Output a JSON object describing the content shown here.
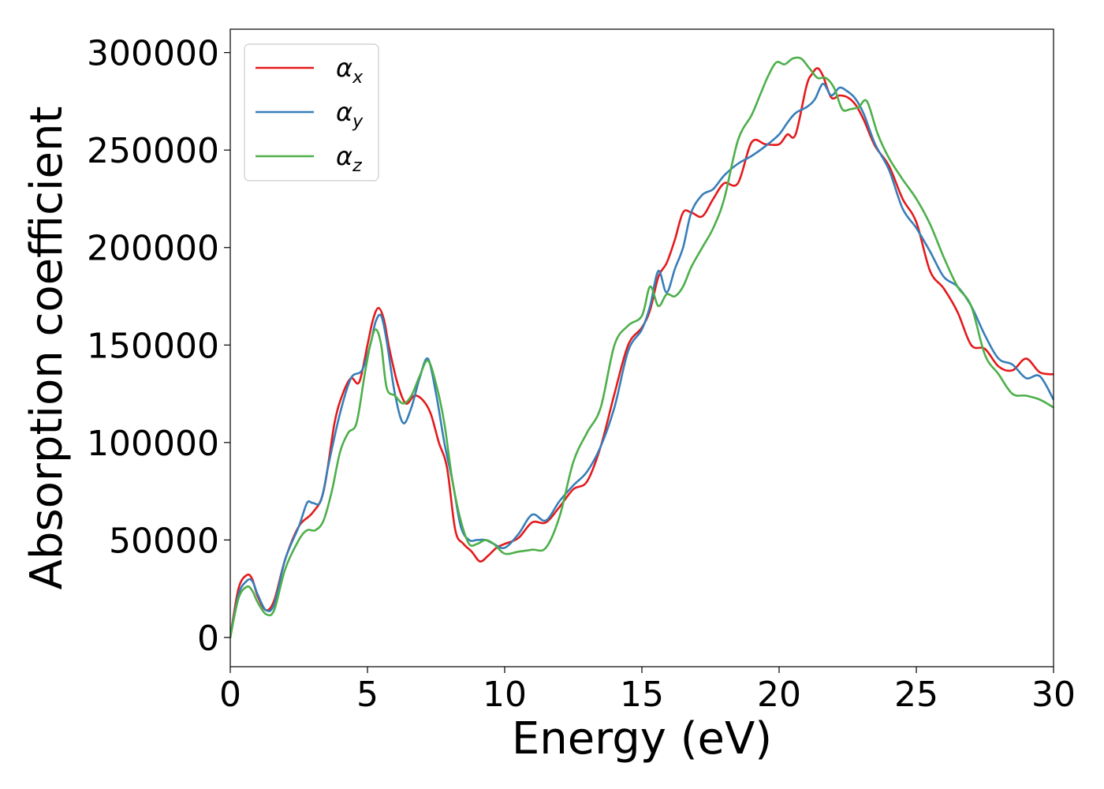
{
  "chart_data": {
    "type": "line",
    "title": "",
    "xlabel": "Energy (eV)",
    "ylabel": "Absorption coefficient",
    "xlim": [
      0,
      30
    ],
    "ylim": [
      -15000,
      312000
    ],
    "xticks": [
      0,
      5,
      10,
      15,
      20,
      25,
      30
    ],
    "yticks": [
      0,
      50000,
      100000,
      150000,
      200000,
      250000,
      300000
    ],
    "grid": false,
    "legend_position": "top-left",
    "series": [
      {
        "name": "αx",
        "symbol": "α",
        "subscript": "x",
        "color": "#e41a1c",
        "x": [
          0,
          0.3,
          0.6,
          0.8,
          1.0,
          1.3,
          1.6,
          2.0,
          2.5,
          3.0,
          3.4,
          3.8,
          4.1,
          4.4,
          4.7,
          5.0,
          5.2,
          5.4,
          5.6,
          5.8,
          6.1,
          6.4,
          6.7,
          7.0,
          7.3,
          7.6,
          7.9,
          8.2,
          8.5,
          8.8,
          9.1,
          9.4,
          9.7,
          10.0,
          10.5,
          11.0,
          11.5,
          12.0,
          12.5,
          13.0,
          13.5,
          14.0,
          14.5,
          15.0,
          15.3,
          15.6,
          15.9,
          16.2,
          16.5,
          16.8,
          17.2,
          17.6,
          18.0,
          18.5,
          19.0,
          19.5,
          20.0,
          20.3,
          20.6,
          21.0,
          21.2,
          21.4,
          21.6,
          21.9,
          22.2,
          22.5,
          22.8,
          23.1,
          23.5,
          24.0,
          24.5,
          25.0,
          25.5,
          26.0,
          26.5,
          27.0,
          27.5,
          28.0,
          28.5,
          29.0,
          29.5,
          30.0
        ],
        "values": [
          0,
          25000,
          32000,
          30000,
          21000,
          14000,
          19000,
          40000,
          57000,
          64000,
          75000,
          110000,
          125000,
          133000,
          131000,
          150000,
          163000,
          169000,
          163000,
          148000,
          130000,
          120000,
          124000,
          122000,
          115000,
          100000,
          87000,
          55000,
          48000,
          44000,
          39000,
          42000,
          46000,
          48000,
          51000,
          59000,
          59000,
          67000,
          76000,
          80000,
          98000,
          125000,
          150000,
          159000,
          168000,
          185000,
          192000,
          204000,
          218000,
          218000,
          216000,
          225000,
          233000,
          233000,
          254000,
          253000,
          253000,
          258000,
          258000,
          283000,
          289000,
          292000,
          288000,
          277000,
          278000,
          277000,
          273000,
          265000,
          252000,
          242000,
          225000,
          213000,
          188000,
          179000,
          167000,
          150000,
          148000,
          139000,
          137000,
          143000,
          136000,
          135000
        ]
      },
      {
        "name": "αy",
        "symbol": "α",
        "subscript": "y",
        "color": "#377eb8",
        "x": [
          0,
          0.3,
          0.6,
          0.8,
          1.0,
          1.3,
          1.6,
          2.0,
          2.5,
          2.8,
          3.0,
          3.3,
          3.6,
          4.0,
          4.4,
          4.8,
          5.1,
          5.3,
          5.5,
          5.7,
          6.0,
          6.3,
          6.6,
          6.9,
          7.2,
          7.5,
          7.8,
          8.1,
          8.4,
          8.7,
          9.0,
          9.3,
          9.6,
          10.0,
          10.5,
          11.0,
          11.5,
          12.0,
          12.5,
          13.0,
          13.5,
          14.0,
          14.5,
          15.0,
          15.3,
          15.6,
          15.9,
          16.2,
          16.5,
          16.8,
          17.2,
          17.6,
          18.0,
          18.5,
          19.0,
          19.5,
          20.0,
          20.3,
          20.6,
          21.0,
          21.3,
          21.6,
          21.9,
          22.2,
          22.5,
          22.8,
          23.1,
          23.5,
          24.0,
          24.5,
          25.0,
          25.5,
          26.0,
          26.5,
          27.0,
          27.5,
          28.0,
          28.5,
          29.0,
          29.5,
          30.0
        ],
        "values": [
          0,
          22000,
          29000,
          29000,
          22000,
          14000,
          17000,
          40000,
          57000,
          69000,
          69000,
          70000,
          90000,
          115000,
          133000,
          137000,
          150000,
          162000,
          165000,
          152000,
          125000,
          110000,
          118000,
          133000,
          143000,
          125000,
          100000,
          80000,
          57000,
          50000,
          50000,
          50000,
          48000,
          46000,
          53000,
          63000,
          60000,
          70000,
          78000,
          85000,
          98000,
          118000,
          147000,
          158000,
          170000,
          188000,
          177000,
          189000,
          200000,
          218000,
          227000,
          230000,
          237000,
          243000,
          247000,
          252000,
          258000,
          264000,
          269000,
          272000,
          276000,
          284000,
          278000,
          282000,
          280000,
          276000,
          268000,
          253000,
          240000,
          220000,
          210000,
          198000,
          185000,
          180000,
          170000,
          155000,
          143000,
          140000,
          133000,
          134000,
          122000
        ]
      },
      {
        "name": "αz",
        "symbol": "α",
        "subscript": "z",
        "color": "#4daf4a",
        "x": [
          0,
          0.3,
          0.6,
          0.8,
          1.0,
          1.3,
          1.6,
          2.0,
          2.5,
          2.8,
          3.1,
          3.4,
          3.7,
          4.0,
          4.3,
          4.6,
          4.9,
          5.1,
          5.3,
          5.5,
          5.7,
          6.0,
          6.3,
          6.6,
          6.9,
          7.2,
          7.5,
          7.8,
          8.1,
          8.4,
          8.7,
          9.0,
          9.3,
          9.6,
          10.0,
          10.5,
          11.0,
          11.5,
          12.0,
          12.5,
          13.0,
          13.5,
          14.0,
          14.5,
          15.0,
          15.3,
          15.6,
          15.9,
          16.2,
          16.5,
          16.8,
          17.2,
          17.6,
          18.0,
          18.5,
          19.0,
          19.3,
          19.6,
          19.9,
          20.2,
          20.5,
          20.8,
          21.1,
          21.4,
          21.7,
          22.0,
          22.3,
          22.6,
          22.9,
          23.2,
          23.6,
          24.0,
          24.5,
          25.0,
          25.5,
          26.0,
          26.5,
          27.0,
          27.5,
          28.0,
          28.5,
          29.0,
          29.5,
          30.0
        ],
        "values": [
          0,
          20000,
          26000,
          24000,
          18000,
          12000,
          14000,
          35000,
          50000,
          55000,
          55000,
          60000,
          75000,
          95000,
          105000,
          110000,
          135000,
          150000,
          158000,
          150000,
          128000,
          124000,
          120000,
          124000,
          134000,
          142000,
          130000,
          110000,
          80000,
          60000,
          48000,
          48000,
          50000,
          48000,
          43000,
          44000,
          45000,
          46000,
          62000,
          90000,
          105000,
          118000,
          150000,
          160000,
          165000,
          180000,
          170000,
          176000,
          175000,
          180000,
          190000,
          200000,
          210000,
          225000,
          255000,
          268000,
          278000,
          288000,
          295000,
          294000,
          297000,
          297000,
          292000,
          287000,
          287000,
          282000,
          271000,
          271000,
          272000,
          275000,
          258000,
          246000,
          235000,
          225000,
          212000,
          195000,
          180000,
          170000,
          145000,
          135000,
          125000,
          124000,
          122000,
          118000
        ]
      }
    ]
  }
}
